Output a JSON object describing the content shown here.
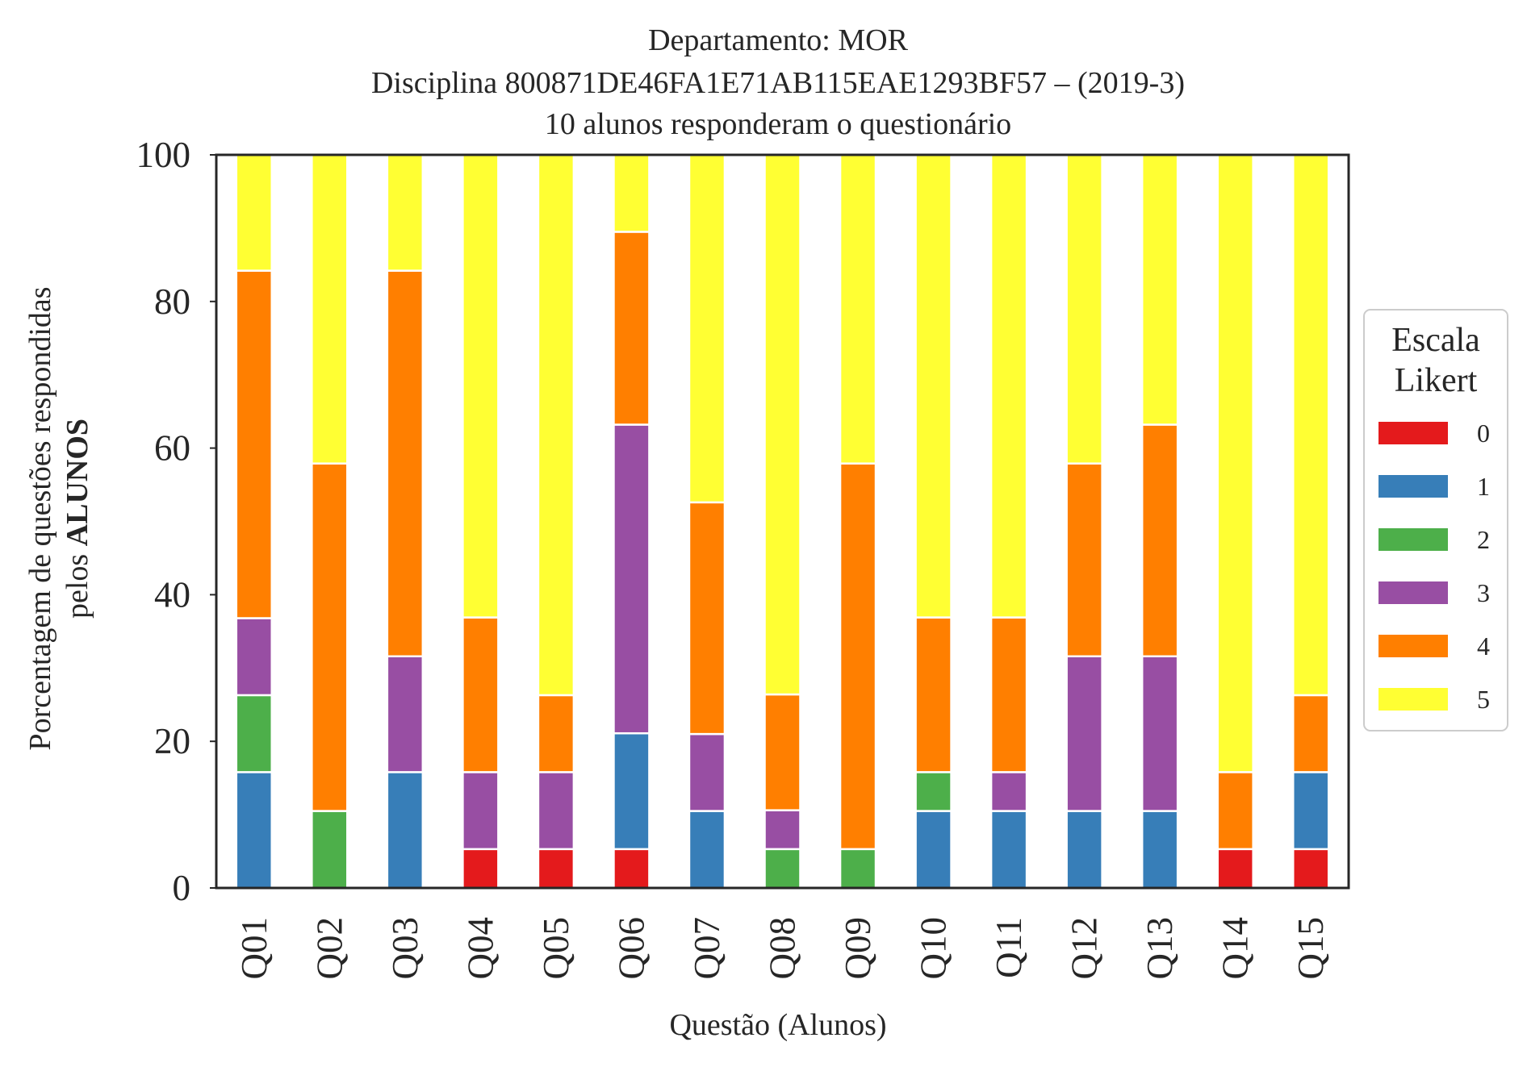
{
  "chart_data": {
    "type": "bar",
    "stacked": true,
    "title": [
      "Departamento: MOR",
      "Disciplina 800871DE46FA1E71AB115EAE1293BF57 – (2019-3)",
      "10 alunos responderam o questionário"
    ],
    "xlabel": "Questão (Alunos)",
    "ylabel_line1": "Porcentagem de questões respondidas",
    "ylabel_line2_prefix": "pelos ",
    "ylabel_line2_bold": "ALUNOS",
    "ylim": [
      0,
      100
    ],
    "yticks": [
      "0",
      "20",
      "40",
      "60",
      "80",
      "100"
    ],
    "grid": false,
    "categories": [
      "Q01",
      "Q02",
      "Q03",
      "Q04",
      "Q05",
      "Q06",
      "Q07",
      "Q08",
      "Q09",
      "Q10",
      "Q11",
      "Q12",
      "Q13",
      "Q14",
      "Q15"
    ],
    "legend": {
      "title": [
        "Escala",
        "Likert"
      ],
      "position": "center-right"
    },
    "series": [
      {
        "name": "0",
        "color": "#e41a1c",
        "values": [
          0,
          0,
          0,
          5.3,
          5.3,
          5.3,
          0,
          0,
          0,
          0,
          0,
          0,
          0,
          5.3,
          5.3
        ]
      },
      {
        "name": "1",
        "color": "#377eb8",
        "values": [
          15.8,
          0,
          15.8,
          0,
          0,
          15.8,
          10.5,
          0,
          0,
          10.5,
          10.5,
          10.5,
          10.5,
          0,
          10.5
        ]
      },
      {
        "name": "2",
        "color": "#4daf4a",
        "values": [
          10.5,
          10.5,
          0,
          0,
          0,
          0,
          0,
          5.3,
          5.3,
          5.3,
          0,
          0,
          0,
          0,
          0
        ]
      },
      {
        "name": "3",
        "color": "#984ea3",
        "values": [
          10.5,
          0,
          15.8,
          10.5,
          10.5,
          42.1,
          10.5,
          5.3,
          0,
          0,
          5.3,
          21.1,
          21.1,
          0,
          0
        ]
      },
      {
        "name": "4",
        "color": "#ff7f00",
        "values": [
          47.4,
          47.4,
          52.6,
          21.1,
          10.5,
          26.3,
          31.6,
          15.8,
          52.6,
          21.1,
          21.1,
          26.3,
          31.6,
          10.5,
          10.5
        ]
      },
      {
        "name": "5",
        "color": "#ffff33",
        "values": [
          15.8,
          42.1,
          15.8,
          63.1,
          73.7,
          10.5,
          47.4,
          73.6,
          42.1,
          63.1,
          63.1,
          42.1,
          36.8,
          84.2,
          73.7
        ]
      }
    ]
  }
}
